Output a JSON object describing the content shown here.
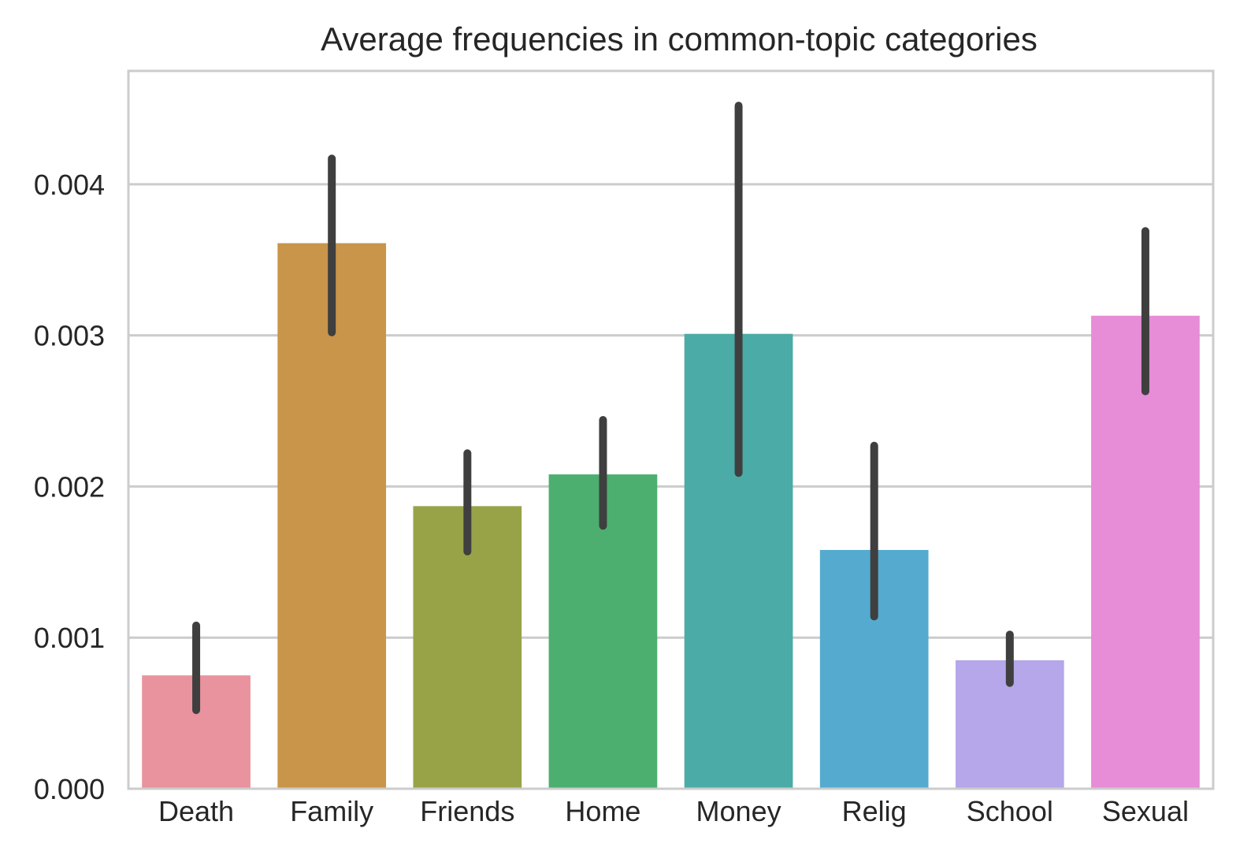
{
  "chart_data": {
    "type": "bar",
    "title": "Average frequencies in common-topic categories",
    "xlabel": "",
    "ylabel": "",
    "categories": [
      "Death",
      "Family",
      "Friends",
      "Home",
      "Money",
      "Relig",
      "School",
      "Sexual"
    ],
    "values": [
      0.00075,
      0.00361,
      0.00187,
      0.00208,
      0.00301,
      0.00158,
      0.00085,
      0.00313
    ],
    "error_low": [
      0.00052,
      0.00302,
      0.00157,
      0.00174,
      0.00209,
      0.00114,
      0.0007,
      0.00263
    ],
    "error_high": [
      0.00108,
      0.00417,
      0.00222,
      0.00244,
      0.00452,
      0.00227,
      0.00102,
      0.00369
    ],
    "colors": [
      "#e8939e",
      "#c9954a",
      "#98a347",
      "#4caf6f",
      "#4bab a7",
      "#54abcf",
      "#b5a7ea",
      "#e78cd6"
    ],
    "ylim": [
      0,
      0.00475
    ],
    "yticks": [
      "0.000",
      "0.001",
      "0.002",
      "0.003",
      "0.004"
    ],
    "ytick_values": [
      0,
      0.001,
      0.002,
      0.003,
      0.004
    ],
    "grid": "horizontal",
    "legend": "none",
    "error_bar_color": "#3f3f3f"
  }
}
